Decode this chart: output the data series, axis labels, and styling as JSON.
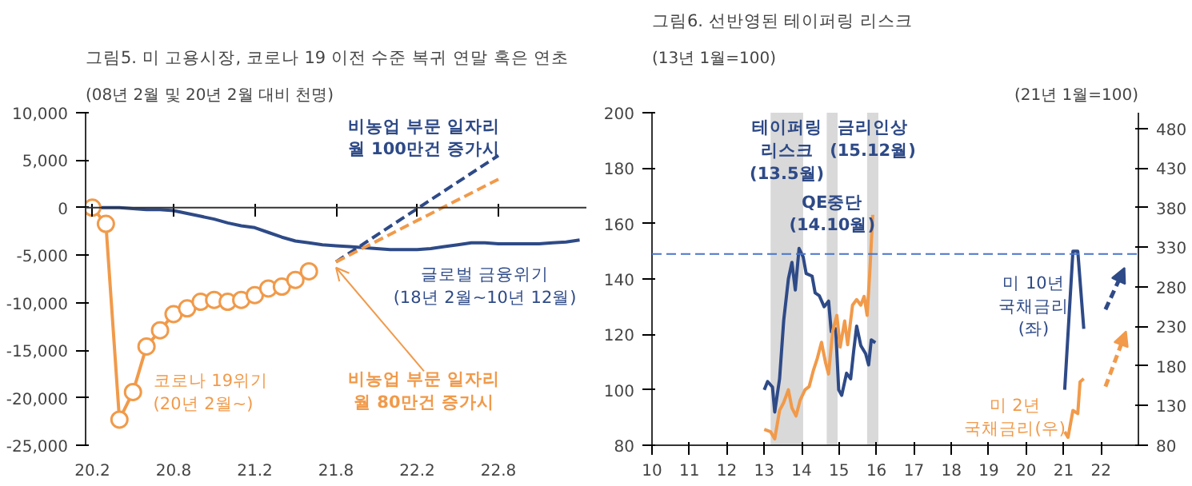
{
  "chart_data": [
    {
      "type": "line",
      "title": "그림5.  미 고용시장, 코로나 19 이전 수준 복귀 연말 혹은 연초",
      "ylabel": "(08년 2월 및 20년 2월 대비 천명)",
      "categories": [
        "20.2",
        null,
        null,
        null,
        null,
        null,
        "20.8",
        null,
        null,
        null,
        null,
        null,
        "21.2",
        null,
        null,
        null,
        null,
        null,
        "21.8",
        null,
        null,
        null,
        null,
        null,
        "22.2",
        null,
        null,
        null,
        null,
        null,
        "22.8",
        null,
        null,
        null,
        null,
        null,
        null
      ],
      "ylim": [
        -25000,
        10000
      ],
      "yticks": [
        {
          "value": -25000,
          "label": "-25,000"
        },
        {
          "value": -20000,
          "label": "-20,000"
        },
        {
          "value": -15000,
          "label": "-15,000"
        },
        {
          "value": -10000,
          "label": "-10,000"
        },
        {
          "value": -5000,
          "label": "-5,000"
        },
        0,
        {
          "value": 5000,
          "label": "5,000"
        },
        {
          "value": 10000,
          "label": "10,000"
        }
      ],
      "grid": false,
      "ref_lines": [
        {
          "axis": "y",
          "value": 0,
          "color": "#333333",
          "line_style": "solid"
        }
      ],
      "series": [
        {
          "name": "글로벌 금융위기\n(18년 2월~10년 12월)",
          "color": "#2e4a87",
          "marker": "none",
          "line_style": "solid",
          "values": [
            0,
            0,
            0,
            -100,
            -200,
            -200,
            -300,
            -600,
            -900,
            -1200,
            -1600,
            -1900,
            -2100,
            -2600,
            -3100,
            -3500,
            -3700,
            -3900,
            -4000,
            -4100,
            -4200,
            -4300,
            -4400,
            -4400,
            -4400,
            -4300,
            -4100,
            -3900,
            -3700,
            -3700,
            -3800,
            -3800,
            -3800,
            -3800,
            -3700,
            -3600,
            -3400
          ]
        },
        {
          "name": "코로나 19위기\n(20년 2월~)",
          "color": "#f19a4a",
          "marker": "circle",
          "line_style": "solid",
          "values": [
            0,
            -1700,
            -22300,
            -19400,
            -14600,
            -12900,
            -11200,
            -10600,
            -9900,
            -9700,
            -9900,
            -9700,
            -9200,
            -8500,
            -8300,
            -7600,
            -6700,
            null,
            null,
            null,
            null,
            null,
            null,
            null,
            null,
            null,
            null,
            null,
            null,
            null,
            null,
            null,
            null,
            null,
            null,
            null,
            null
          ]
        },
        {
          "name": "비농업 부문 일자리\n월 100만건 증가시",
          "color": "#2e4a87",
          "marker": "none",
          "line_style": "dashed",
          "values": [
            null,
            null,
            null,
            null,
            null,
            null,
            null,
            null,
            null,
            null,
            null,
            null,
            null,
            null,
            null,
            null,
            null,
            null,
            -5700,
            null,
            null,
            null,
            null,
            null,
            null,
            null,
            null,
            null,
            null,
            null,
            5500,
            null,
            null,
            null,
            null,
            null,
            null
          ]
        },
        {
          "name": "비농업 부문 일자리\n월 80만건 증가시",
          "color": "#f19a4a",
          "marker": "none",
          "line_style": "dashed",
          "values": [
            null,
            null,
            null,
            null,
            null,
            null,
            null,
            null,
            null,
            null,
            null,
            null,
            null,
            null,
            null,
            null,
            null,
            null,
            -5700,
            null,
            null,
            null,
            null,
            null,
            null,
            null,
            null,
            null,
            null,
            null,
            3000,
            null,
            null,
            null,
            null,
            null,
            null
          ]
        }
      ]
    },
    {
      "type": "line",
      "title": "그림6.  선반영된 테이퍼링 리스크",
      "ylabel": "(13년 1월=100)",
      "y2label": "(21년 1월=100)",
      "xlim": [
        10,
        23
      ],
      "xticks": [
        10,
        11,
        12,
        13,
        14,
        15,
        16,
        17,
        18,
        19,
        20,
        21,
        22
      ],
      "ylim": [
        80,
        200
      ],
      "yticks": [
        80,
        100,
        120,
        140,
        160,
        180,
        200
      ],
      "y2lim": [
        80,
        500
      ],
      "y2ticks": [
        80,
        130,
        180,
        230,
        280,
        330,
        380,
        430,
        480
      ],
      "grid": false,
      "bands": [
        {
          "axis": "x",
          "from": 13.17,
          "to": 14.04,
          "label": "테이퍼링\n리스크\n(13.5월)",
          "color": "#d9d9d9"
        },
        {
          "axis": "x",
          "from": 14.67,
          "to": 14.96,
          "label": "QE중단\n(14.10월)",
          "color": "#d9d9d9"
        },
        {
          "axis": "x",
          "from": 15.75,
          "to": 16.05,
          "label": "금리인상\n(15.12월)",
          "color": "#d9d9d9"
        }
      ],
      "ref_lines": [
        {
          "axis": "y",
          "value": 149,
          "color": "#4a74c9",
          "line_style": "dashed"
        }
      ],
      "series": [
        {
          "name": "미 10년\n국채금리\n(좌)",
          "color": "#2e4a87",
          "marker": "none",
          "line_style": "solid",
          "x": [
            13.0,
            13.09,
            13.22,
            13.28,
            13.41,
            13.52,
            13.645,
            13.74,
            13.83,
            13.93,
            14.04,
            14.12,
            14.28,
            14.36,
            14.47,
            14.6,
            14.72,
            14.79,
            14.91,
            14.99,
            15.07,
            15.2,
            15.31,
            15.39,
            15.47,
            15.58,
            15.71,
            15.79,
            15.86,
            15.97,
            18.5,
            21.03,
            21.25,
            21.38,
            21.54
          ],
          "values": [
            100,
            103,
            101,
            92,
            104,
            125,
            140,
            146,
            136,
            151,
            148,
            142,
            141,
            135,
            134,
            130,
            132,
            121,
            122,
            100,
            98,
            106,
            104,
            114,
            123,
            116,
            113,
            109,
            118,
            117,
            null,
            100,
            150,
            150,
            122
          ]
        },
        {
          "name": "미 2년\n국채금리(우)",
          "axis": "y2",
          "color": "#f19a4a",
          "marker": "none",
          "line_style": "solid",
          "x": [
            13.0,
            13.17,
            13.28,
            13.41,
            13.52,
            13.645,
            13.74,
            13.85,
            13.96,
            14.09,
            14.2,
            14.31,
            14.42,
            14.53,
            14.64,
            14.72,
            14.83,
            14.94,
            15.03,
            15.15,
            15.23,
            15.36,
            15.47,
            15.58,
            15.67,
            15.75,
            15.82,
            15.9,
            18.5,
            21.03,
            21.12,
            21.25,
            21.38,
            21.44,
            21.54
          ],
          "values": [
            100,
            97,
            88,
            124,
            134,
            150,
            127,
            117,
            137,
            150,
            154,
            174,
            190,
            210,
            184,
            170,
            224,
            244,
            204,
            237,
            207,
            257,
            264,
            257,
            268,
            244,
            298,
            371,
            null,
            97,
            90,
            124,
            120,
            160,
            164
          ]
        }
      ]
    }
  ]
}
